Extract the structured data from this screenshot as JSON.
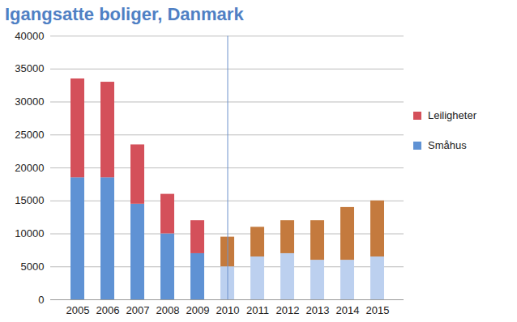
{
  "chart_data": {
    "type": "bar",
    "title": "Igangsatte boliger, Danmark",
    "categories": [
      "2005",
      "2006",
      "2007",
      "2008",
      "2009",
      "2010",
      "2011",
      "2012",
      "2013",
      "2014",
      "2015"
    ],
    "stacked": true,
    "series": [
      {
        "name": "Småhus",
        "values": [
          18500,
          18500,
          14500,
          10000,
          7000,
          5000,
          6500,
          7000,
          6000,
          6000,
          6500
        ],
        "colors": [
          "#5f92d4",
          "#5f92d4",
          "#5f92d4",
          "#5f92d4",
          "#5f92d4",
          "#bcd0ef",
          "#bcd0ef",
          "#bcd0ef",
          "#bcd0ef",
          "#bcd0ef",
          "#bcd0ef"
        ]
      },
      {
        "name": "Leiligheter",
        "values": [
          15000,
          14500,
          9000,
          6000,
          5000,
          4500,
          4500,
          5000,
          6000,
          8000,
          8500
        ],
        "colors": [
          "#d4505a",
          "#d4505a",
          "#d4505a",
          "#d4505a",
          "#d4505a",
          "#c47a3e",
          "#c47a3e",
          "#c47a3e",
          "#c47a3e",
          "#c47a3e",
          "#c47a3e"
        ]
      }
    ],
    "ylim": [
      0,
      40000
    ],
    "yticks": [
      0,
      5000,
      10000,
      15000,
      20000,
      25000,
      30000,
      35000,
      40000
    ],
    "grid": true,
    "legend": "right"
  }
}
